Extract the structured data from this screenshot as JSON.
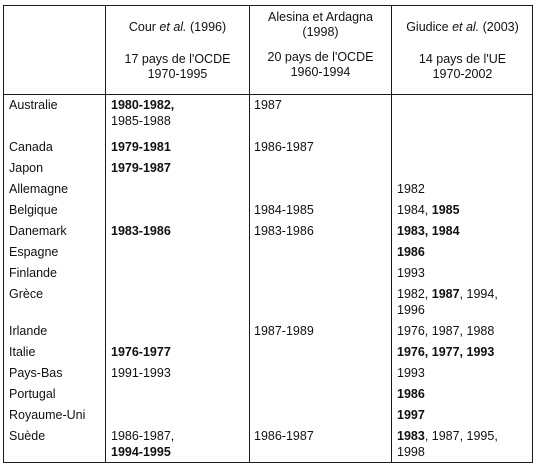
{
  "headers": [
    {
      "authors_pre": "Cour ",
      "authors_em": "et al.",
      "authors_post": " (1996)",
      "scope": "17 pays de l'OCDE",
      "period": "1970-1995"
    },
    {
      "authors_line1": "Alesina et Ardagna",
      "authors_line2": "(1998)",
      "scope": "20 pays de l'OCDE",
      "period": "1960-1994"
    },
    {
      "authors_pre": "Giudice ",
      "authors_em": "et al.",
      "authors_post": " (2003)",
      "scope": "14 pays de l'UE",
      "period": "1970-2002"
    }
  ],
  "rows": [
    {
      "country": "Australie",
      "c1": [
        {
          "t": "1980-1982,",
          "b": true
        },
        {
          "t": "1985-1988",
          "b": false
        }
      ],
      "c2": [
        {
          "t": "1987",
          "b": false
        }
      ],
      "c3": []
    },
    {
      "country": "Canada",
      "c1": [
        {
          "t": "1979-1981",
          "b": true
        }
      ],
      "c2": [
        {
          "t": "1986-1987",
          "b": false
        }
      ],
      "c3": []
    },
    {
      "country": "Japon",
      "c1": [
        {
          "t": "1979-1987",
          "b": true
        }
      ],
      "c2": [],
      "c3": []
    },
    {
      "country": "Allemagne",
      "c1": [],
      "c2": [],
      "c3": [
        {
          "t": "1982",
          "b": false
        }
      ]
    },
    {
      "country": "Belgique",
      "c1": [],
      "c2": [
        {
          "t": "1984-1985",
          "b": false
        }
      ],
      "c3": [
        {
          "t": "1984, ",
          "b": false
        },
        {
          "t": "1985",
          "b": true
        }
      ]
    },
    {
      "country": "Danemark",
      "c1": [
        {
          "t": "1983-1986",
          "b": true
        }
      ],
      "c2": [
        {
          "t": "1983-1986",
          "b": false
        }
      ],
      "c3": [
        {
          "t": "1983, 1984",
          "b": true
        }
      ]
    },
    {
      "country": "Espagne",
      "c1": [],
      "c2": [],
      "c3": [
        {
          "t": "1986",
          "b": true
        }
      ]
    },
    {
      "country": "Finlande",
      "c1": [],
      "c2": [],
      "c3": [
        {
          "t": "1993",
          "b": false
        }
      ]
    },
    {
      "country": "Grèce",
      "c1": [],
      "c2": [],
      "c3": [
        {
          "t": "1982, ",
          "b": false
        },
        {
          "t": "1987",
          "b": true
        },
        {
          "t": ", 1994,",
          "b": false
        },
        {
          "t": "1996",
          "b": false
        }
      ]
    },
    {
      "country": "Irlande",
      "c1": [],
      "c2": [
        {
          "t": "1987-1989",
          "b": false
        }
      ],
      "c3": [
        {
          "t": "1976, 1987, 1988",
          "b": false
        }
      ]
    },
    {
      "country": "Italie",
      "c1": [
        {
          "t": "1976-1977",
          "b": true
        }
      ],
      "c2": [],
      "c3": [
        {
          "t": "1976, 1977, 1993",
          "b": true
        }
      ]
    },
    {
      "country": "Pays-Bas",
      "c1": [
        {
          "t": "1991-1993",
          "b": false
        }
      ],
      "c2": [],
      "c3": [
        {
          "t": "1993",
          "b": false
        }
      ]
    },
    {
      "country": "Portugal",
      "c1": [],
      "c2": [],
      "c3": [
        {
          "t": "1986",
          "b": true
        }
      ]
    },
    {
      "country": "Royaume-Uni",
      "c1": [],
      "c2": [],
      "c3": [
        {
          "t": "1997",
          "b": true
        }
      ]
    },
    {
      "country": "Suède",
      "c1": [
        {
          "t": "1986-1987,",
          "b": false
        },
        {
          "t": "1994-1995",
          "b": true
        }
      ],
      "c2": [
        {
          "t": "1986-1987",
          "b": false
        }
      ],
      "c3": [
        {
          "t": "1983",
          "b": true
        },
        {
          "t": ", 1987, 1995,",
          "b": false
        },
        {
          "t": "1998",
          "b": false
        }
      ]
    }
  ]
}
